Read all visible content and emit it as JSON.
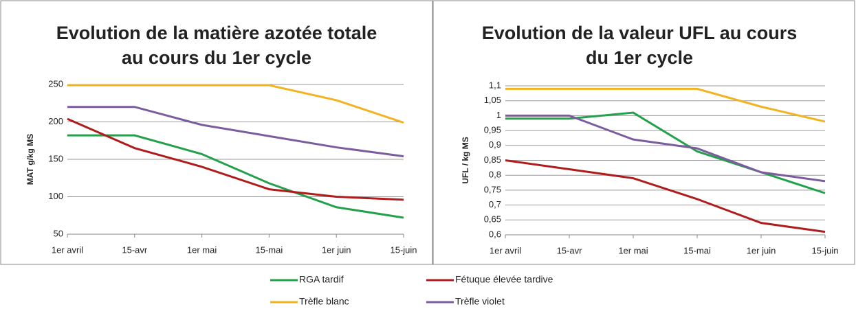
{
  "chart_data": [
    {
      "type": "line",
      "title": [
        "Evolution de la matière azotée totale",
        "au cours du 1er cycle"
      ],
      "y_label": "MAT g/kg MS",
      "categories": [
        "1er avril",
        "15-avr",
        "1er mai",
        "15-mai",
        "1er juin",
        "15-juin"
      ],
      "ylim": [
        50,
        250
      ],
      "yticks": [
        50,
        100,
        150,
        200,
        250
      ],
      "grid": true,
      "series": [
        {
          "name": "RGA tardif",
          "color": "#22a04a",
          "values": [
            182,
            182,
            157,
            118,
            86,
            72
          ]
        },
        {
          "name": "Fétuque élevée tardive",
          "color": "#b01c1c",
          "values": [
            204,
            165,
            140,
            110,
            100,
            96
          ]
        },
        {
          "name": "Trèfle blanc",
          "color": "#f2b320",
          "values": [
            249,
            249,
            249,
            249,
            229,
            199
          ]
        },
        {
          "name": "Trèfle violet",
          "color": "#7b5c9e",
          "values": [
            220,
            220,
            196,
            181,
            166,
            154
          ]
        }
      ]
    },
    {
      "type": "line",
      "title": [
        "Evolution de la valeur UFL au cours",
        "du 1er cycle"
      ],
      "y_label": "UFL / kg MS",
      "categories": [
        "1er avril",
        "15-avr",
        "1er mai",
        "15-mai",
        "1er juin",
        "15-juin"
      ],
      "ylim": [
        0.6,
        1.1
      ],
      "yticks": [
        {
          "value": 0.6,
          "label": "0,6"
        },
        {
          "value": 0.65,
          "label": "0,65"
        },
        {
          "value": 0.7,
          "label": "0,7"
        },
        {
          "value": 0.75,
          "label": "0,75"
        },
        {
          "value": 0.8,
          "label": "0,8"
        },
        {
          "value": 0.85,
          "label": "0,85"
        },
        {
          "value": 0.9,
          "label": "0,9"
        },
        {
          "value": 0.95,
          "label": "0,95"
        },
        1,
        {
          "value": 1.05,
          "label": "1,05"
        },
        {
          "value": 1.1,
          "label": "1,1"
        }
      ],
      "grid": true,
      "series": [
        {
          "name": "RGA tardif",
          "color": "#22a04a",
          "values": [
            0.99,
            0.99,
            1.01,
            0.88,
            0.81,
            0.74
          ]
        },
        {
          "name": "Fétuque élevée tardive",
          "color": "#b01c1c",
          "values": [
            0.85,
            0.82,
            0.79,
            0.72,
            0.64,
            0.61
          ]
        },
        {
          "name": "Trèfle blanc",
          "color": "#f2b320",
          "values": [
            1.09,
            1.09,
            1.09,
            1.09,
            1.03,
            0.98
          ]
        },
        {
          "name": "Trèfle violet",
          "color": "#7b5c9e",
          "values": [
            1.0,
            1.0,
            0.92,
            0.89,
            0.81,
            0.78
          ]
        }
      ]
    }
  ]
}
